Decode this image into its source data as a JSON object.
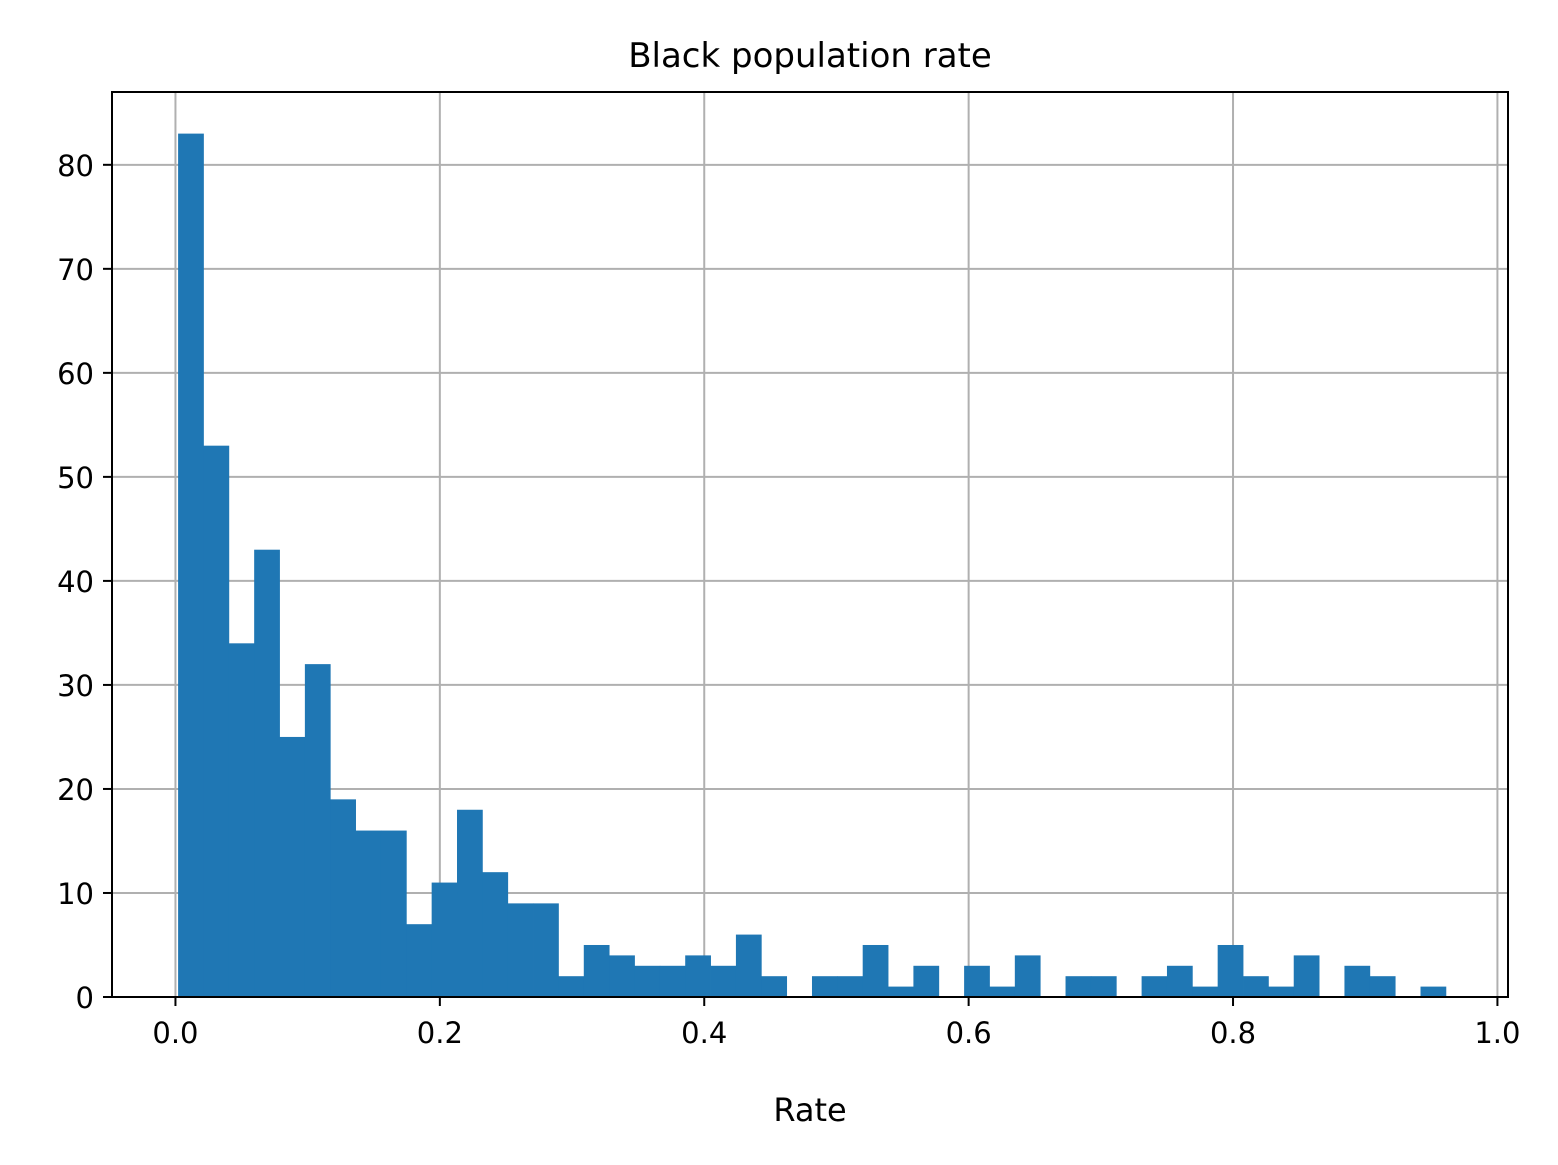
{
  "chart_data": {
    "type": "bar",
    "title": "Black population rate",
    "xlabel": "Rate",
    "ylabel": "",
    "xlim": [
      -0.048,
      1.008
    ],
    "ylim": [
      0,
      87
    ],
    "grid": true,
    "legend": "none",
    "bin_start": 0.002,
    "bin_width": 0.01918,
    "counts": [
      83,
      53,
      34,
      43,
      25,
      32,
      19,
      16,
      16,
      7,
      11,
      18,
      12,
      9,
      9,
      2,
      5,
      4,
      3,
      3,
      4,
      3,
      6,
      2,
      0,
      2,
      2,
      5,
      1,
      3,
      0,
      3,
      1,
      4,
      0,
      2,
      2,
      0,
      2,
      3,
      1,
      5,
      2,
      1,
      4,
      0,
      3,
      2,
      0,
      1
    ],
    "x_ticks": [
      {
        "value": 0.0,
        "label": "0.0"
      },
      {
        "value": 0.2,
        "label": "0.2"
      },
      {
        "value": 0.4,
        "label": "0.4"
      },
      {
        "value": 0.6,
        "label": "0.6"
      },
      {
        "value": 0.8,
        "label": "0.8"
      },
      {
        "value": 1.0,
        "label": "1.0"
      }
    ],
    "y_ticks": [
      {
        "value": 0,
        "label": "0"
      },
      {
        "value": 10,
        "label": "10"
      },
      {
        "value": 20,
        "label": "20"
      },
      {
        "value": 30,
        "label": "30"
      },
      {
        "value": 40,
        "label": "40"
      },
      {
        "value": 50,
        "label": "50"
      },
      {
        "value": 60,
        "label": "60"
      },
      {
        "value": 70,
        "label": "70"
      },
      {
        "value": 80,
        "label": "80"
      }
    ],
    "colors": {
      "bar": "#1f77b4",
      "grid": "#b0b0b0",
      "axis": "#000000"
    }
  }
}
